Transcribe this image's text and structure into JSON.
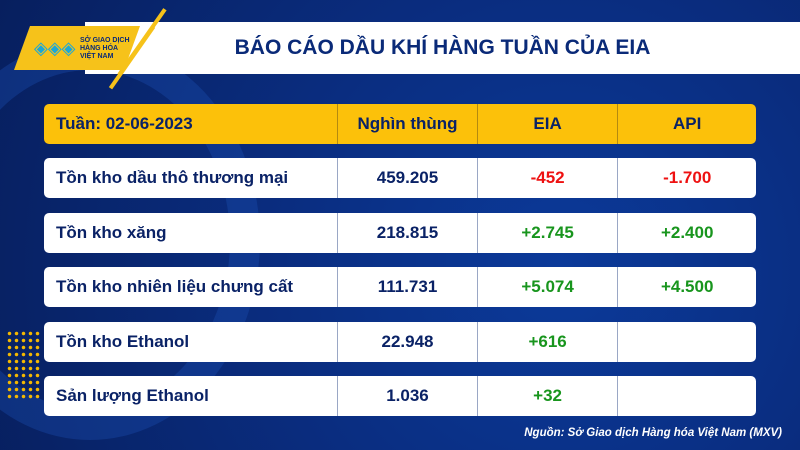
{
  "logo": {
    "text_lines": [
      "SỞ GIAO DỊCH",
      "HÀNG HÓA",
      "VIỆT NAM"
    ]
  },
  "title": "BÁO CÁO DẦU KHÍ HÀNG TUẦN CỦA EIA",
  "table": {
    "headers": [
      "Tuần: 02-06-2023",
      "Nghìn thùng",
      "EIA",
      "API"
    ],
    "rows": [
      {
        "label": "Tồn kho dầu thô thương mại",
        "value": "459.205",
        "eia": "-452",
        "api": "-1.700"
      },
      {
        "label": "Tồn kho xăng",
        "value": "218.815",
        "eia": "+2.745",
        "api": "+2.400"
      },
      {
        "label": "Tồn kho nhiên liệu chưng cất",
        "value": "111.731",
        "eia": "+5.074",
        "api": "+4.500"
      },
      {
        "label": "Tồn kho Ethanol",
        "value": "22.948",
        "eia": "+616",
        "api": ""
      },
      {
        "label": "Sản lượng Ethanol",
        "value": "1.036",
        "eia": "+32",
        "api": ""
      }
    ]
  },
  "source": "Nguồn: Sở Giao dịch Hàng hóa Việt Nam (MXV)",
  "colors": {
    "header": "#fcc10a",
    "negative": "#ee1111",
    "positive": "#18951d",
    "text": "#0a2266",
    "background": "#0a2d80"
  }
}
